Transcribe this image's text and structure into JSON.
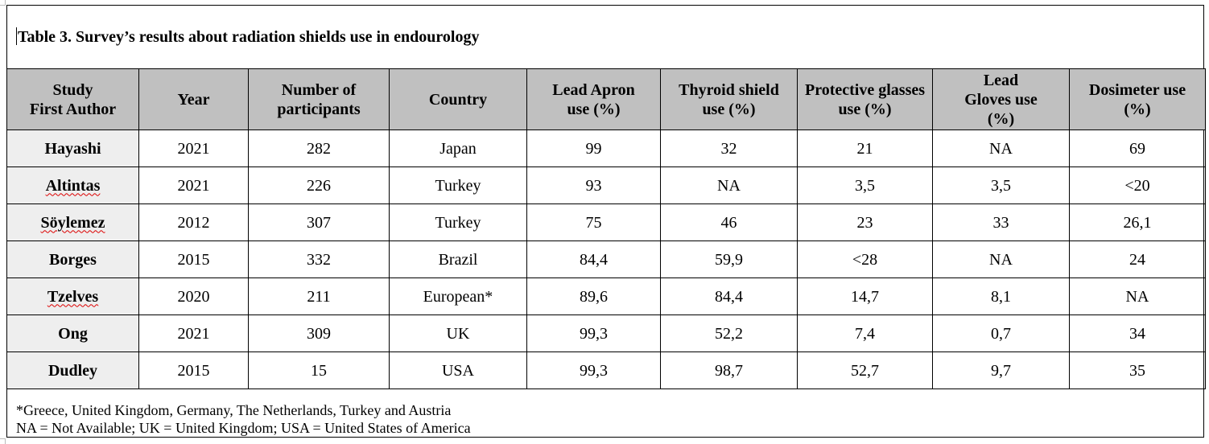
{
  "caption": "Table 3. Survey’s results about radiation shields use in endourology",
  "table": {
    "headers": [
      [
        "Study",
        "First Author"
      ],
      [
        "Year"
      ],
      [
        "Number of",
        "participants"
      ],
      [
        "Country"
      ],
      [
        "Lead Apron",
        "use (%)"
      ],
      [
        "Thyroid shield",
        "use (%)"
      ],
      [
        "Protective glasses",
        "use (%)"
      ],
      [
        "Lead",
        "Gloves use",
        "(%)"
      ],
      [
        "Dosimeter use",
        "(%)"
      ]
    ],
    "rows": [
      [
        "Hayashi",
        "2021",
        "282",
        "Japan",
        "99",
        "32",
        "21",
        "NA",
        "69"
      ],
      [
        "Altintas",
        "2021",
        "226",
        "Turkey",
        "93",
        "NA",
        "3,5",
        "3,5",
        "<20"
      ],
      [
        "Söylemez",
        "2012",
        "307",
        "Turkey",
        "75",
        "46",
        "23",
        "33",
        "26,1"
      ],
      [
        "Borges",
        "2015",
        "332",
        "Brazil",
        "84,4",
        "59,9",
        "<28",
        "NA",
        "24"
      ],
      [
        "Tzelves",
        "2020",
        "211",
        "European*",
        "89,6",
        "84,4",
        "14,7",
        "8,1",
        "NA"
      ],
      [
        "Ong",
        "2021",
        "309",
        "UK",
        "99,3",
        "52,2",
        "7,4",
        "0,7",
        "34"
      ],
      [
        "Dudley",
        "2015",
        "15",
        "USA",
        "99,3",
        "98,7",
        "52,7",
        "9,7",
        "35"
      ]
    ]
  },
  "notes": [
    "*Greece, United Kingdom, Germany, The Netherlands, Turkey and Austria",
    "NA = Not Available; UK = United Kingdom; USA = United States of America"
  ]
}
